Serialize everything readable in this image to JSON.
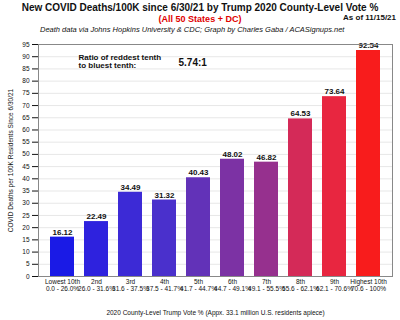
{
  "chart_data": {
    "type": "bar",
    "title": "New COVID Deaths/100K since 6/30/21 by Trump 2020 County-Level Vote %",
    "subtitle": "(All 50 States + DC)",
    "annotations": [
      "As of 11/15/21",
      "Death data via Johns Hopkins University & CDC; Graph by Charles Gaba / ACASignups.net",
      "Ratio of reddest tenth\nto bluest tenth:",
      "5.74:1"
    ],
    "x_label": "2020 County-Level Trump Vote % (Appx. 33.1 million U.S. residents apiece)",
    "y_label": "COVID Deaths per 100K Residents Since 6/30/21",
    "categories": [
      "Lowest 10th\n0.0 - 26.0%",
      "2nd\n26.0 - 31.6%",
      "3rd\n31.6 - 37.5%",
      "4th\n37.5 - 41.7%",
      "5th\n41.7 - 44.7%",
      "6th\n44.7 - 49.1%",
      "7th\n49.1 - 55.5%",
      "8th\n55.6 - 62.1%",
      "9th\n62.1 - 70.6%",
      "Highest 10th\n70.6 - 100%"
    ],
    "values": [
      16.12,
      22.49,
      34.49,
      31.32,
      40.43,
      48.02,
      46.82,
      64.53,
      73.64,
      92.54
    ],
    "colors": [
      "#1a1ae6",
      "#2e22de",
      "#3c2ad6",
      "#4a30cc",
      "#6232b8",
      "#7c32a4",
      "#96308e",
      "#d42a58",
      "#e82640",
      "#f81c1c"
    ],
    "ylim": [
      0,
      95
    ],
    "yticks": [
      0,
      5,
      10,
      15,
      20,
      25,
      30,
      35,
      40,
      45,
      50,
      55,
      60,
      65,
      70,
      75,
      80,
      85,
      90,
      95
    ],
    "grid": true,
    "data_labels": true
  }
}
